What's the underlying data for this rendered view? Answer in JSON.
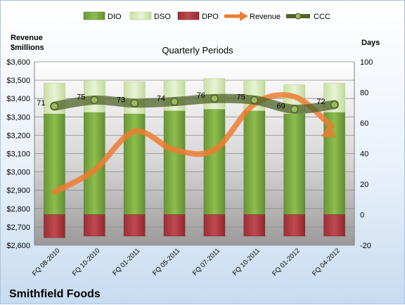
{
  "chart_data": {
    "type": "bar",
    "title": "Quarterly Periods",
    "company": "Smithfield Foods",
    "y_left_label": [
      "Revenue",
      "$millions"
    ],
    "y_right_label": "Days",
    "categories": [
      "FQ 08-2010",
      "FQ 10-2010",
      "FQ 01-2011",
      "FQ 05-2011",
      "FQ 07-2011",
      "FQ 10-2011",
      "FQ 01-2012",
      "FQ 04-2012"
    ],
    "left_ylim": [
      2600,
      3600
    ],
    "left_ticks": [
      "$2,600",
      "$2,700",
      "$2,800",
      "$2,900",
      "$3,000",
      "$3,100",
      "$3,200",
      "$3,300",
      "$3,400",
      "$3,500",
      "$3,600"
    ],
    "right_ylim": [
      -20,
      100
    ],
    "right_ticks": [
      "-20",
      "0",
      "20",
      "40",
      "60",
      "80",
      "100"
    ],
    "series": [
      {
        "name": "DIO",
        "axis": "right",
        "kind": "stacked-bar",
        "color": "#7ba842",
        "values": [
          66,
          67,
          66,
          68,
          69,
          68,
          66,
          67
        ]
      },
      {
        "name": "DSO",
        "axis": "right",
        "kind": "stacked-bar",
        "color": "#d7e8b8",
        "values": [
          20,
          21,
          21,
          20,
          20,
          20,
          19,
          19
        ]
      },
      {
        "name": "DPO",
        "axis": "right",
        "kind": "bar-negative",
        "color": "#b03a3e",
        "values": [
          -15,
          -14,
          -14,
          -14,
          -14,
          -14,
          -14,
          -14
        ]
      },
      {
        "name": "Revenue",
        "axis": "left",
        "kind": "line",
        "color": "#ed7d31",
        "values": [
          2890,
          3010,
          3220,
          3120,
          3120,
          3370,
          3410,
          3210
        ]
      },
      {
        "name": "CCC",
        "axis": "right",
        "kind": "line",
        "color": "#4f6228",
        "values": [
          71,
          75,
          73,
          74,
          76,
          75,
          69,
          72
        ]
      }
    ],
    "ccc_labels": [
      "71",
      "75",
      "73",
      "74",
      "76",
      "75",
      "69",
      "72"
    ],
    "legend": [
      "DIO",
      "DSO",
      "DPO",
      "Revenue",
      "CCC"
    ],
    "legend_position": "top",
    "grid": true
  }
}
